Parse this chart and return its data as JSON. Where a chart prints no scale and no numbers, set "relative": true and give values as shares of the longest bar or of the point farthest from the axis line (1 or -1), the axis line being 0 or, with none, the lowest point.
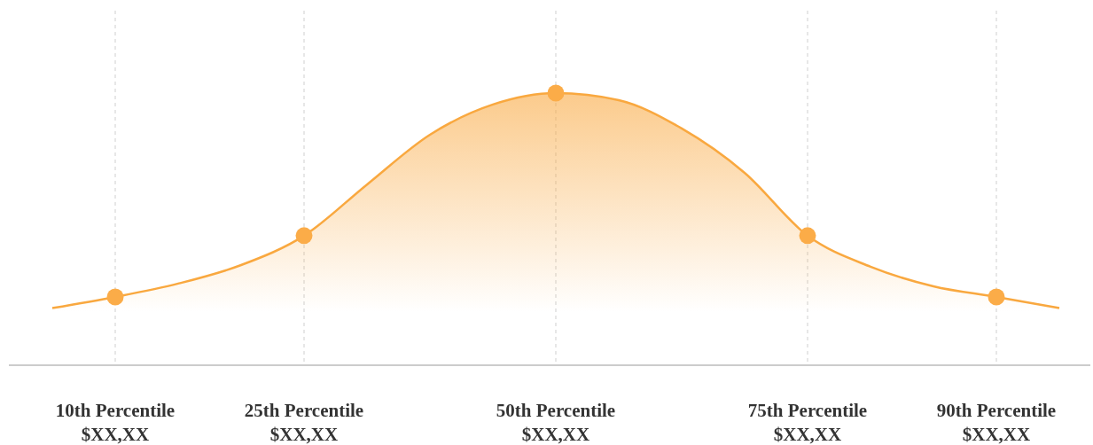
{
  "chart_data": {
    "type": "area",
    "relative": true,
    "categories": [
      null,
      "10th Percentile\n$XX,XX",
      null,
      null,
      "25th Percentile\n$XX,XX",
      null,
      null,
      null,
      "50th Percentile\n$XX,XX",
      null,
      null,
      null,
      "75th Percentile\n$XX,XX",
      null,
      null,
      "90th Percentile\n$XX,XX",
      null
    ],
    "grid": "x",
    "series": [
      {
        "marker": "none",
        "color": "#f9a83f",
        "values": [
          0.21,
          0.251,
          0.3,
          0.368,
          0.476,
          0.664,
          0.847,
          0.958,
          1,
          0.974,
          0.87,
          0.707,
          0.476,
          0.362,
          0.29,
          0.251,
          0.21
        ]
      },
      {
        "type": "scatter",
        "marker": "circle",
        "color": "#fbac48",
        "values": [
          null,
          0.251,
          null,
          null,
          0.476,
          null,
          null,
          null,
          1,
          null,
          null,
          null,
          0.476,
          null,
          null,
          0.251,
          null
        ]
      }
    ]
  }
}
